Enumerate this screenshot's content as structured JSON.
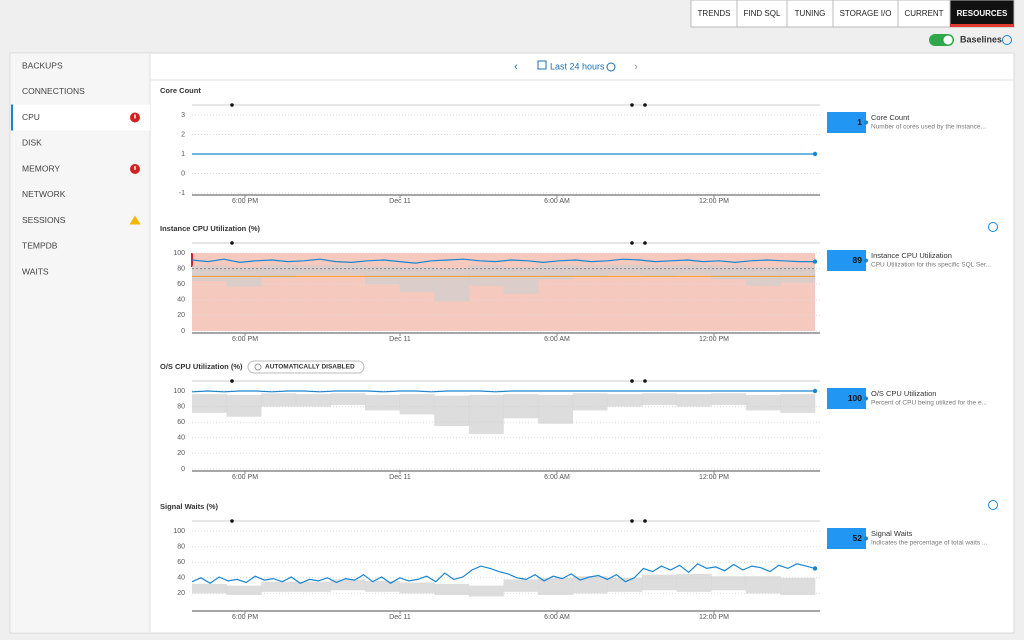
{
  "tabs": [
    "TRENDS",
    "FIND SQL",
    "TUNING",
    "STORAGE I/O",
    "CURRENT",
    "RESOURCES"
  ],
  "active_tab": 5,
  "baselines": {
    "label": "Baselines",
    "enabled": true
  },
  "time_range": "Last 24 hours",
  "sidebar": {
    "selected": 2,
    "items": [
      {
        "label": "BACKUPS"
      },
      {
        "label": "CONNECTIONS"
      },
      {
        "label": "CPU",
        "status": "error"
      },
      {
        "label": "DISK"
      },
      {
        "label": "MEMORY",
        "status": "error"
      },
      {
        "label": "NETWORK"
      },
      {
        "label": "SESSIONS",
        "status": "warning"
      },
      {
        "label": "TEMPDB"
      },
      {
        "label": "WAITS"
      }
    ]
  },
  "panels": [
    {
      "title": "Core Count",
      "ylim": [
        -1,
        3
      ],
      "yticks": [
        3,
        2,
        1,
        0,
        -1
      ],
      "xticks": [
        "6:00 PM",
        "Dec 11",
        "6:00 AM",
        "12:00 PM"
      ],
      "values": [
        1,
        1
      ],
      "current": {
        "value": 1,
        "name": "Core Count",
        "description": "Number of cores used by the instance..."
      }
    },
    {
      "title": "Instance CPU Utilization (%)",
      "info": true,
      "ylim": [
        0,
        100
      ],
      "yticks": [
        100,
        80,
        60,
        40,
        20,
        0
      ],
      "xticks": [
        "6:00 PM",
        "Dec 11",
        "6:00 AM",
        "12:00 PM"
      ],
      "alert_range": [
        0,
        100
      ],
      "warning_line": 80,
      "critical_line": 70,
      "baseline": {
        "low": [
          64,
          57,
          68,
          72,
          72,
          60,
          50,
          38,
          58,
          48,
          66,
          70,
          72,
          70,
          72,
          66,
          58,
          62
        ],
        "high": [
          84,
          82,
          85,
          84,
          85,
          83,
          82,
          80,
          84,
          82,
          85,
          84,
          85,
          84,
          85,
          84,
          82,
          83
        ]
      },
      "values": [
        91,
        89,
        92,
        88,
        90,
        91,
        89,
        90,
        92,
        89,
        88,
        90,
        91,
        89,
        87,
        90,
        91,
        92,
        90,
        89,
        91,
        90,
        88,
        90,
        91,
        89,
        90,
        92,
        91,
        89,
        90,
        91,
        89,
        90,
        88,
        90,
        91,
        90,
        89,
        89
      ],
      "current": {
        "value": 89,
        "name": "Instance CPU Utilization",
        "description": "CPU Utilization for this specific SQL Ser..."
      }
    },
    {
      "title": "O/S CPU Utilization (%)",
      "badge": "AUTOMATICALLY DISABLED",
      "ylim": [
        0,
        100
      ],
      "yticks": [
        100,
        80,
        60,
        40,
        20,
        0
      ],
      "xticks": [
        "6:00 PM",
        "Dec 11",
        "6:00 AM",
        "12:00 PM"
      ],
      "baseline": {
        "low": [
          72,
          67,
          80,
          80,
          82,
          75,
          70,
          55,
          45,
          65,
          58,
          75,
          80,
          82,
          80,
          82,
          75,
          72
        ],
        "high": [
          96,
          95,
          97,
          96,
          97,
          95,
          96,
          94,
          95,
          96,
          95,
          97,
          96,
          97,
          96,
          97,
          95,
          96
        ]
      },
      "values": [
        99,
        100,
        99,
        100,
        100,
        99,
        100,
        100,
        99,
        100,
        100,
        100,
        99,
        100,
        100,
        99,
        100,
        100,
        100,
        99,
        100,
        100,
        100,
        100,
        100,
        100,
        100,
        100,
        100,
        100,
        100,
        100,
        100,
        100,
        100,
        100,
        100,
        100,
        100,
        100
      ],
      "current": {
        "value": 100,
        "name": "O/S CPU Utilization",
        "description": "Percent of CPU being utilized for the e..."
      }
    },
    {
      "title": "Signal Waits (%)",
      "info": true,
      "ylim": [
        0,
        100
      ],
      "yticks": [
        100,
        80,
        60,
        40,
        20
      ],
      "xticks": [
        "6:00 PM",
        "Dec 11",
        "6:00 AM",
        "12:00 PM"
      ],
      "baseline": {
        "low": [
          20,
          18,
          22,
          22,
          24,
          22,
          20,
          18,
          16,
          22,
          18,
          20,
          22,
          24,
          22,
          24,
          20,
          18
        ],
        "high": [
          32,
          30,
          35,
          35,
          38,
          36,
          34,
          32,
          30,
          38,
          40,
          42,
          40,
          44,
          45,
          42,
          42,
          40
        ]
      },
      "values": [
        35,
        40,
        33,
        41,
        36,
        38,
        34,
        42,
        37,
        39,
        35,
        41,
        33,
        38,
        36,
        40,
        34,
        39,
        37,
        44,
        35,
        41,
        33,
        40,
        36,
        38,
        42,
        35,
        46,
        38,
        41,
        50,
        55,
        52,
        48,
        45,
        40,
        38,
        44,
        36,
        42,
        39,
        45,
        37,
        41,
        43,
        38,
        44,
        35,
        40,
        52,
        48,
        55,
        50,
        56,
        47,
        58,
        52,
        54,
        49,
        57,
        50,
        55,
        53,
        48,
        56,
        52,
        58,
        55,
        52
      ],
      "current": {
        "value": 52,
        "name": "Signal Waits",
        "description": "Indicates the percentage of total waits ..."
      }
    }
  ]
}
